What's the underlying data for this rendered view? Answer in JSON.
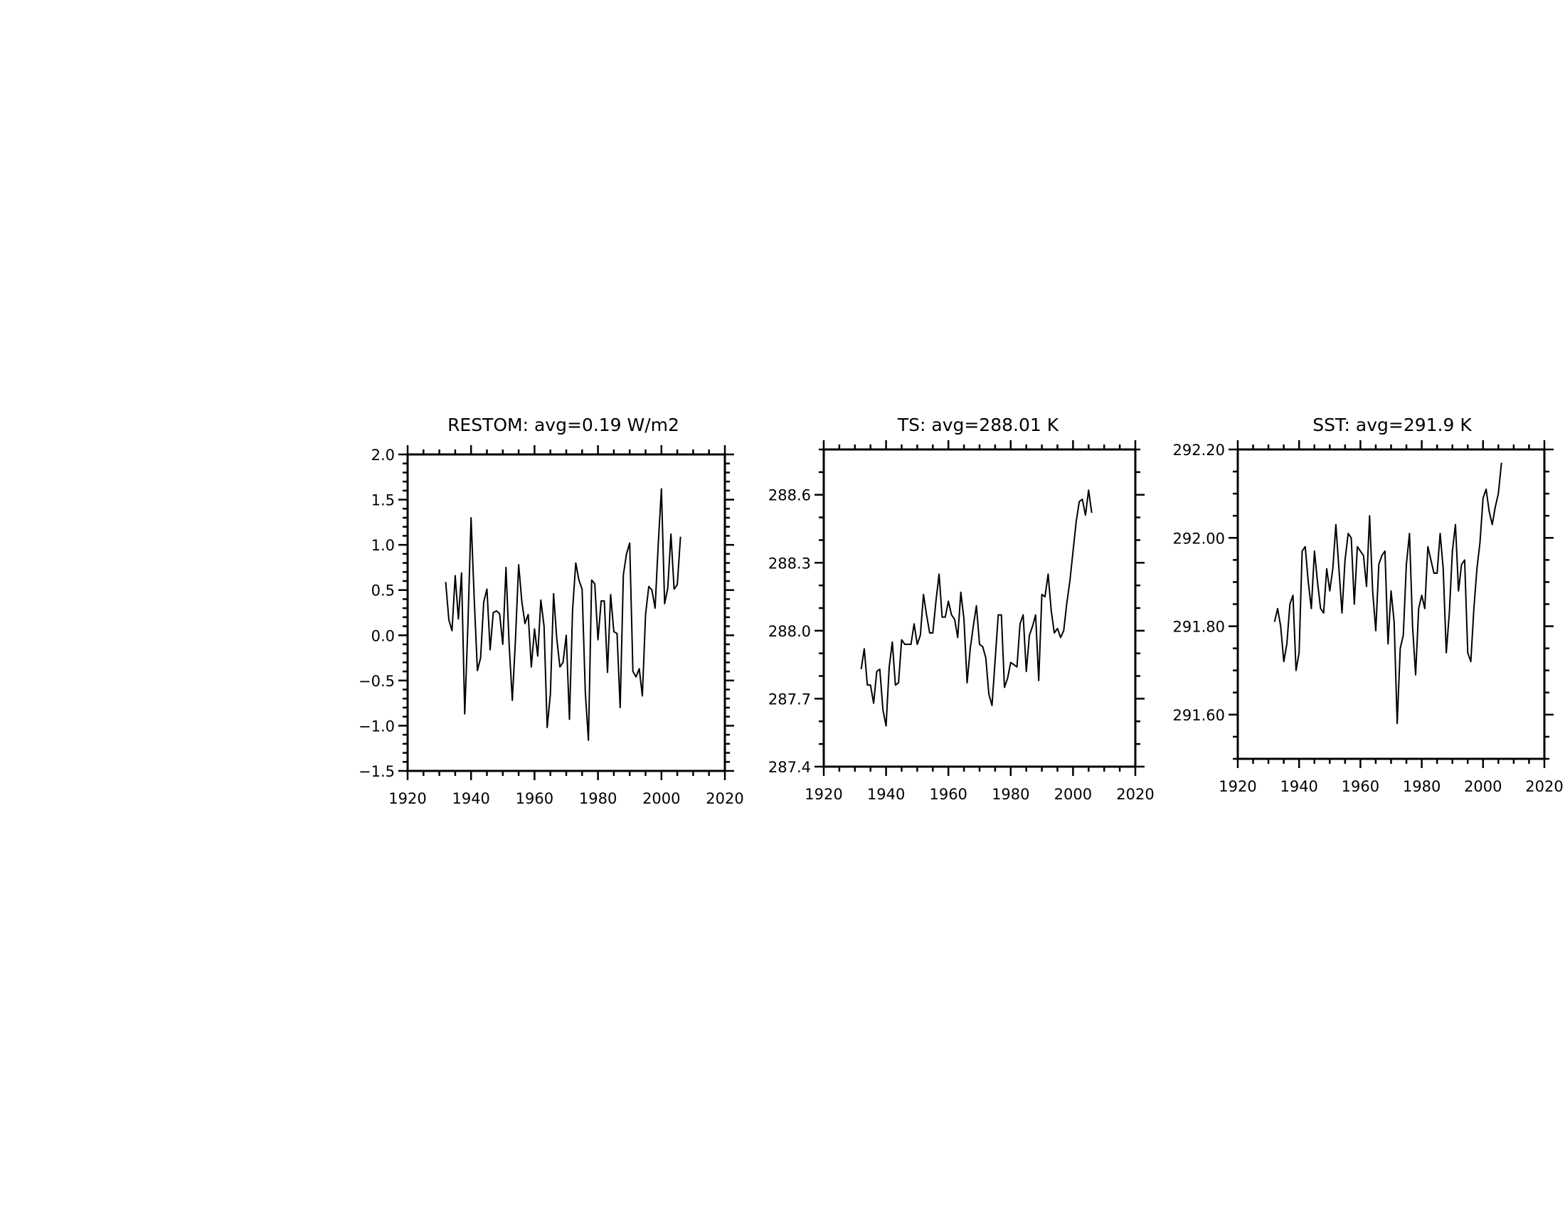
{
  "colors": {
    "line": "#000000",
    "frame": "#000000",
    "background": "#ffffff"
  },
  "chart_data": [
    {
      "type": "line",
      "title": "RESTOM: avg=0.19 W/m2",
      "xlabel": "",
      "ylabel": "",
      "xlim": [
        1920,
        2020
      ],
      "ylim": [
        -1.5,
        2.0
      ],
      "xticks": [
        1920,
        1940,
        1960,
        1980,
        2000,
        2020
      ],
      "xtick_labels": [
        "1920",
        "1940",
        "1960",
        "1980",
        "2000",
        "2020"
      ],
      "yticks": [
        -1.5,
        -1.0,
        -0.5,
        0.0,
        0.5,
        1.0,
        1.5,
        2.0
      ],
      "ytick_labels": [
        "−1.5",
        "−1.0",
        "−0.5",
        "0.0",
        "0.5",
        "1.0",
        "1.5",
        "2.0"
      ],
      "grid": false,
      "x": [
        1932,
        1933,
        1934,
        1935,
        1936,
        1937,
        1938,
        1939,
        1940,
        1941,
        1942,
        1943,
        1944,
        1945,
        1946,
        1947,
        1948,
        1949,
        1950,
        1951,
        1952,
        1953,
        1954,
        1955,
        1956,
        1957,
        1958,
        1959,
        1960,
        1961,
        1962,
        1963,
        1964,
        1965,
        1966,
        1967,
        1968,
        1969,
        1970,
        1971,
        1972,
        1973,
        1974,
        1975,
        1976,
        1977,
        1978,
        1979,
        1980,
        1981,
        1982,
        1983,
        1984,
        1985,
        1986,
        1987,
        1988,
        1989,
        1990,
        1991,
        1992,
        1993,
        1994,
        1995,
        1996,
        1997,
        1998,
        1999,
        2000,
        2001,
        2002,
        2003,
        2004,
        2005,
        2006
      ],
      "series": [
        {
          "values": [
            0.59,
            0.17,
            0.05,
            0.66,
            0.18,
            0.69,
            -0.87,
            0.1,
            1.3,
            0.39,
            -0.39,
            -0.25,
            0.37,
            0.51,
            -0.16,
            0.25,
            0.27,
            0.24,
            -0.1,
            0.75,
            -0.1,
            -0.72,
            -0.05,
            0.78,
            0.37,
            0.13,
            0.23,
            -0.35,
            0.07,
            -0.23,
            0.39,
            0.1,
            -1.02,
            -0.65,
            0.46,
            -0.03,
            -0.35,
            -0.3,
            0.0,
            -0.93,
            0.28,
            0.8,
            0.61,
            0.51,
            -0.63,
            -1.16,
            0.61,
            0.57,
            -0.05,
            0.38,
            0.38,
            -0.41,
            0.45,
            0.04,
            0.02,
            -0.8,
            0.67,
            0.9,
            1.02,
            -0.4,
            -0.46,
            -0.37,
            -0.67,
            0.23,
            0.54,
            0.5,
            0.3,
            1.0,
            1.62,
            0.35,
            0.52,
            1.12,
            0.51,
            0.56,
            1.09
          ]
        }
      ]
    },
    {
      "type": "line",
      "title": "TS: avg=288.01 K",
      "xlabel": "",
      "ylabel": "",
      "xlim": [
        1920,
        2020
      ],
      "ylim": [
        287.4,
        288.8
      ],
      "xticks": [
        1920,
        1940,
        1960,
        1980,
        2000,
        2020
      ],
      "xtick_labels": [
        "1920",
        "1940",
        "1960",
        "1980",
        "2000",
        "2020"
      ],
      "yticks": [
        287.4,
        287.7,
        288.0,
        288.3,
        288.6
      ],
      "ytick_labels": [
        "287.4",
        "287.7",
        "288.0",
        "288.3",
        "288.6"
      ],
      "grid": false,
      "x": [
        1932,
        1933,
        1934,
        1935,
        1936,
        1937,
        1938,
        1939,
        1940,
        1941,
        1942,
        1943,
        1944,
        1945,
        1946,
        1947,
        1948,
        1949,
        1950,
        1951,
        1952,
        1953,
        1954,
        1955,
        1956,
        1957,
        1958,
        1959,
        1960,
        1961,
        1962,
        1963,
        1964,
        1965,
        1966,
        1967,
        1968,
        1969,
        1970,
        1971,
        1972,
        1973,
        1974,
        1975,
        1976,
        1977,
        1978,
        1979,
        1980,
        1981,
        1982,
        1983,
        1984,
        1985,
        1986,
        1987,
        1988,
        1989,
        1990,
        1991,
        1992,
        1993,
        1994,
        1995,
        1996,
        1997,
        1998,
        1999,
        2000,
        2001,
        2002,
        2003,
        2004,
        2005,
        2006
      ],
      "series": [
        {
          "values": [
            287.83,
            287.92,
            287.76,
            287.76,
            287.68,
            287.82,
            287.83,
            287.65,
            287.58,
            287.84,
            287.95,
            287.76,
            287.77,
            287.96,
            287.94,
            287.94,
            287.94,
            288.03,
            287.94,
            287.98,
            288.16,
            288.07,
            287.99,
            287.99,
            288.13,
            288.25,
            288.06,
            288.06,
            288.13,
            288.07,
            288.05,
            287.97,
            288.17,
            288.05,
            287.77,
            287.92,
            288.02,
            288.11,
            287.94,
            287.93,
            287.88,
            287.72,
            287.67,
            287.87,
            288.07,
            288.07,
            287.75,
            287.79,
            287.86,
            287.85,
            287.84,
            288.03,
            288.07,
            287.82,
            287.98,
            288.02,
            288.07,
            287.78,
            288.16,
            288.15,
            288.25,
            288.09,
            287.99,
            288.01,
            287.97,
            288.0,
            288.12,
            288.22,
            288.35,
            288.48,
            288.57,
            288.58,
            288.51,
            288.62,
            288.52
          ]
        }
      ]
    },
    {
      "type": "line",
      "title": "SST: avg=291.9 K",
      "xlabel": "",
      "ylabel": "",
      "xlim": [
        1920,
        2020
      ],
      "ylim": [
        291.5,
        292.2
      ],
      "xticks": [
        1920,
        1940,
        1960,
        1980,
        2000,
        2020
      ],
      "xtick_labels": [
        "1920",
        "1940",
        "1960",
        "1980",
        "2000",
        "2020"
      ],
      "yticks": [
        291.6,
        291.8,
        292.0,
        292.2
      ],
      "ytick_labels": [
        "291.60",
        "291.80",
        "292.00",
        "292.20"
      ],
      "grid": false,
      "x": [
        1932,
        1933,
        1934,
        1935,
        1936,
        1937,
        1938,
        1939,
        1940,
        1941,
        1942,
        1943,
        1944,
        1945,
        1946,
        1947,
        1948,
        1949,
        1950,
        1951,
        1952,
        1953,
        1954,
        1955,
        1956,
        1957,
        1958,
        1959,
        1960,
        1961,
        1962,
        1963,
        1964,
        1965,
        1966,
        1967,
        1968,
        1969,
        1970,
        1971,
        1972,
        1973,
        1974,
        1975,
        1976,
        1977,
        1978,
        1979,
        1980,
        1981,
        1982,
        1983,
        1984,
        1985,
        1986,
        1987,
        1988,
        1989,
        1990,
        1991,
        1992,
        1993,
        1994,
        1995,
        1996,
        1997,
        1998,
        1999,
        2000,
        2001,
        2002,
        2003,
        2004,
        2005,
        2006
      ],
      "series": [
        {
          "values": [
            291.81,
            291.84,
            291.8,
            291.72,
            291.76,
            291.85,
            291.87,
            291.7,
            291.74,
            291.97,
            291.98,
            291.9,
            291.84,
            291.97,
            291.9,
            291.84,
            291.83,
            291.93,
            291.88,
            291.93,
            292.03,
            291.93,
            291.83,
            291.95,
            292.01,
            292.0,
            291.85,
            291.98,
            291.97,
            291.96,
            291.89,
            292.05,
            291.88,
            291.79,
            291.94,
            291.96,
            291.97,
            291.76,
            291.88,
            291.81,
            291.58,
            291.75,
            291.78,
            291.94,
            292.01,
            291.8,
            291.69,
            291.84,
            291.87,
            291.84,
            291.98,
            291.95,
            291.92,
            291.92,
            292.01,
            291.93,
            291.74,
            291.83,
            291.97,
            292.03,
            291.88,
            291.94,
            291.95,
            291.74,
            291.72,
            291.84,
            291.93,
            291.99,
            292.09,
            292.11,
            292.06,
            292.03,
            292.07,
            292.1,
            292.17
          ]
        }
      ]
    }
  ]
}
